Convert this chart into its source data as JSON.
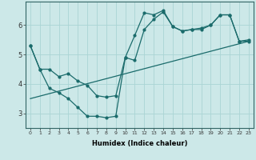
{
  "xlabel": "Humidex (Indice chaleur)",
  "bg_color": "#cce8e8",
  "line_color": "#1a6b6b",
  "grid_color": "#aad4d4",
  "curve1_x": [
    0,
    1,
    2,
    3,
    4,
    5,
    6,
    7,
    8,
    9,
    10,
    11,
    12,
    13,
    14,
    15,
    16,
    17,
    18,
    19,
    20,
    21,
    22,
    23
  ],
  "curve1_y": [
    5.3,
    4.5,
    3.85,
    3.7,
    3.5,
    3.2,
    2.9,
    2.9,
    2.85,
    2.9,
    4.9,
    5.65,
    6.42,
    6.35,
    6.5,
    5.95,
    5.8,
    5.85,
    5.85,
    6.0,
    6.35,
    6.35,
    5.45,
    5.5
  ],
  "curve2_x": [
    0,
    23
  ],
  "curve2_y": [
    3.5,
    5.45
  ],
  "curve3_x": [
    0,
    1,
    2,
    3,
    4,
    5,
    6,
    7,
    8,
    9,
    10,
    11,
    12,
    13,
    14,
    15,
    16,
    17,
    18,
    19,
    20,
    21,
    22,
    23
  ],
  "curve3_y": [
    5.3,
    4.5,
    4.5,
    4.25,
    4.35,
    4.1,
    3.95,
    3.6,
    3.55,
    3.6,
    4.9,
    4.8,
    5.85,
    6.2,
    6.45,
    5.95,
    5.8,
    5.85,
    5.9,
    6.0,
    6.35,
    6.35,
    5.45,
    5.45
  ],
  "yticks": [
    3,
    4,
    5,
    6
  ],
  "xticks": [
    0,
    1,
    2,
    3,
    4,
    5,
    6,
    7,
    8,
    9,
    10,
    11,
    12,
    13,
    14,
    15,
    16,
    17,
    18,
    19,
    20,
    21,
    22,
    23
  ],
  "ylim": [
    2.5,
    6.8
  ],
  "xlim": [
    -0.5,
    23.5
  ]
}
